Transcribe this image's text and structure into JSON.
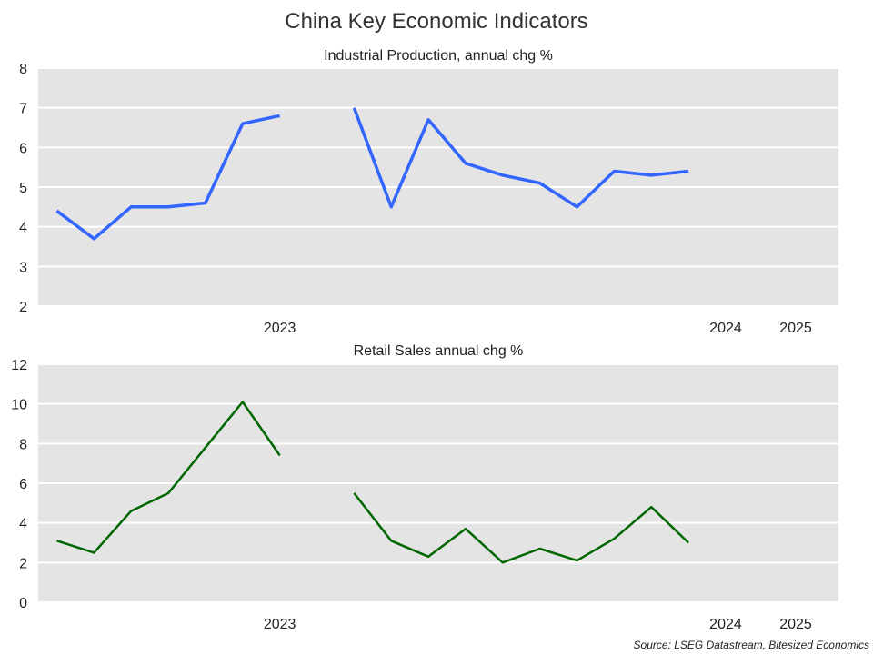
{
  "title": "China Key Economic Indicators",
  "source": "Source: LSEG Datastream, Bitesized Economics",
  "chart_data": [
    {
      "type": "line",
      "title": "Industrial Production, annual chg %",
      "x": [
        "2023-01",
        "2023-02",
        "2023-03",
        "2023-04",
        "2023-05",
        "2023-06",
        "2023-07",
        "2023-08",
        "2023-09",
        "2023-10",
        "2023-11",
        "2023-12",
        "2024-01",
        "2024-02",
        "2024-03",
        "2024-04",
        "2024-05",
        "2024-06",
        "2024-07",
        "2024-08",
        "2024-09",
        "2024-10",
        "2024-11",
        "2024-12",
        "2025-01"
      ],
      "series": [
        {
          "color": "#3366ff",
          "values": [
            4.4,
            3.7,
            4.5,
            4.5,
            4.6,
            6.6,
            6.8,
            null,
            7.0,
            4.5,
            6.7,
            5.6,
            5.3,
            5.1,
            4.5,
            5.4,
            5.3,
            5.4,
            null,
            null,
            null,
            null,
            null,
            null,
            null
          ]
        }
      ],
      "xtick_labels": [
        "2023",
        "2024",
        "2025"
      ],
      "ylim": [
        2,
        8
      ],
      "yticks": [
        2,
        3,
        4,
        5,
        6,
        7,
        8
      ],
      "grid": true
    },
    {
      "type": "line",
      "title": "Retail Sales annual chg %",
      "x": [
        "2023-01",
        "2023-02",
        "2023-03",
        "2023-04",
        "2023-05",
        "2023-06",
        "2023-07",
        "2023-08",
        "2023-09",
        "2023-10",
        "2023-11",
        "2023-12",
        "2024-01",
        "2024-02",
        "2024-03",
        "2024-04",
        "2024-05",
        "2024-06",
        "2024-07",
        "2024-08",
        "2024-09",
        "2024-10",
        "2024-11",
        "2024-12",
        "2025-01"
      ],
      "series": [
        {
          "color": "#006600",
          "values": [
            3.1,
            2.5,
            4.6,
            5.5,
            7.8,
            10.1,
            7.4,
            null,
            5.5,
            3.1,
            2.3,
            3.7,
            2.0,
            2.7,
            2.1,
            3.2,
            4.8,
            3.0,
            null,
            null,
            null,
            null,
            null,
            null,
            null
          ]
        }
      ],
      "xtick_labels": [
        "2023",
        "2024",
        "2025"
      ],
      "ylim": [
        0,
        12
      ],
      "yticks": [
        0,
        2,
        4,
        6,
        8,
        10,
        12
      ],
      "grid": true
    }
  ],
  "colors": {
    "panel_background": "#e4e4e4",
    "gridline": "#ffffff"
  }
}
